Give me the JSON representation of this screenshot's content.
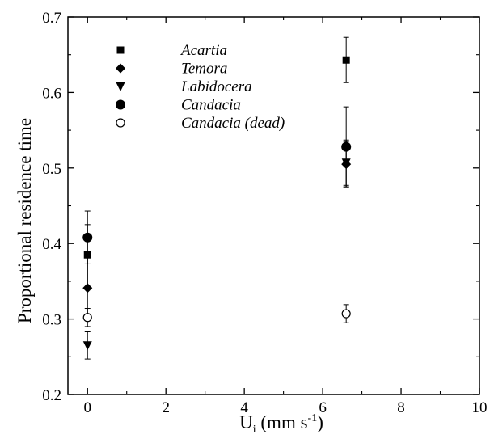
{
  "chart_data": {
    "type": "scatter",
    "xlabel": {
      "main": "U",
      "sub": "i",
      "unit_open": " (mm s",
      "sup": "-1",
      "unit_close": ")"
    },
    "ylabel": "Proportional residence time",
    "xlim": [
      -0.5,
      10
    ],
    "ylim": [
      0.2,
      0.7
    ],
    "xticks": [
      0,
      2,
      4,
      6,
      8,
      10
    ],
    "yticks": [
      0.2,
      0.3,
      0.4,
      0.5,
      0.6,
      0.7
    ],
    "tick_format_y": 1,
    "grid": false,
    "legend_position": "top-left",
    "series": [
      {
        "name": "Acartia",
        "marker": "square-filled",
        "points": [
          {
            "x": 0,
            "y": 0.385,
            "err": 0.04
          },
          {
            "x": 6.6,
            "y": 0.643,
            "err": 0.03
          }
        ]
      },
      {
        "name": "Temora",
        "marker": "diamond-filled",
        "points": [
          {
            "x": 0,
            "y": 0.341,
            "err": 0.04
          },
          {
            "x": 6.6,
            "y": 0.505,
            "err": 0.03
          }
        ]
      },
      {
        "name": "Labidocera",
        "marker": "triangle-down-filled",
        "points": [
          {
            "x": 0,
            "y": 0.265,
            "err": 0.018
          },
          {
            "x": 6.6,
            "y": 0.507,
            "err": 0.03
          }
        ]
      },
      {
        "name": "Candacia",
        "marker": "circle-filled",
        "points": [
          {
            "x": 0,
            "y": 0.408,
            "err": 0.035
          },
          {
            "x": 6.6,
            "y": 0.528,
            "err": 0.053
          }
        ]
      },
      {
        "name": "Candacia (dead)",
        "marker": "circle-open",
        "points": [
          {
            "x": 0,
            "y": 0.302,
            "err": 0.012
          },
          {
            "x": 6.6,
            "y": 0.307,
            "err": 0.012
          }
        ]
      }
    ]
  }
}
